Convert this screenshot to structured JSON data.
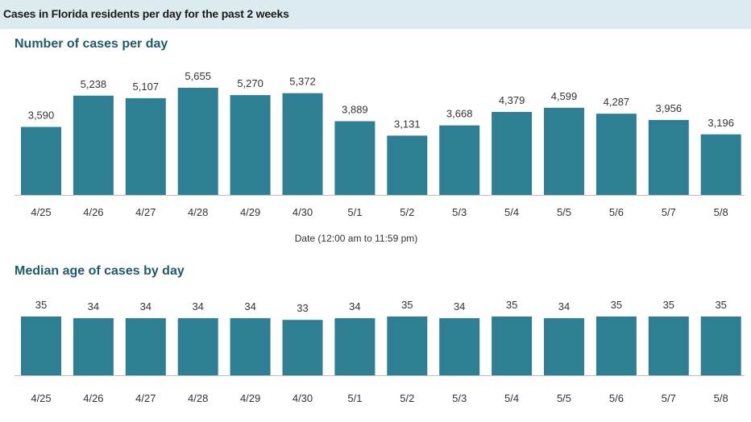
{
  "header": {
    "title": "Cases in Florida residents per day for the past 2 weeks"
  },
  "colors": {
    "bar": "#2e7f93",
    "axis": "#bfbfbf",
    "banner": "#dcebf0",
    "title": "#1f5a6b"
  },
  "chart_data": [
    {
      "type": "bar",
      "title": "Number of cases per day",
      "xlabel": "Date (12:00 am to 11:59 pm)",
      "ylabel": "",
      "categories": [
        "4/25",
        "4/26",
        "4/27",
        "4/28",
        "4/29",
        "4/30",
        "5/1",
        "5/2",
        "5/3",
        "5/4",
        "5/5",
        "5/6",
        "5/7",
        "5/8"
      ],
      "values": [
        3590,
        5238,
        5107,
        5655,
        5270,
        5372,
        3889,
        3131,
        3668,
        4379,
        4599,
        4287,
        3956,
        3196
      ],
      "value_labels": [
        "3,590",
        "5,238",
        "5,107",
        "5,655",
        "5,270",
        "5,372",
        "3,889",
        "3,131",
        "3,668",
        "4,379",
        "4,599",
        "4,287",
        "3,956",
        "3,196"
      ],
      "ylim": [
        0,
        5655
      ],
      "grid": false,
      "legend": "none"
    },
    {
      "type": "bar",
      "title": "Median age of cases by day",
      "xlabel": "",
      "ylabel": "",
      "categories": [
        "4/25",
        "4/26",
        "4/27",
        "4/28",
        "4/29",
        "4/30",
        "5/1",
        "5/2",
        "5/3",
        "5/4",
        "5/5",
        "5/6",
        "5/7",
        "5/8"
      ],
      "values": [
        35,
        34,
        34,
        34,
        34,
        33,
        34,
        35,
        34,
        35,
        34,
        35,
        35,
        35
      ],
      "value_labels": [
        "35",
        "34",
        "34",
        "34",
        "34",
        "33",
        "34",
        "35",
        "34",
        "35",
        "34",
        "35",
        "35",
        "35"
      ],
      "ylim": [
        0,
        35
      ],
      "grid": false,
      "legend": "none"
    }
  ]
}
